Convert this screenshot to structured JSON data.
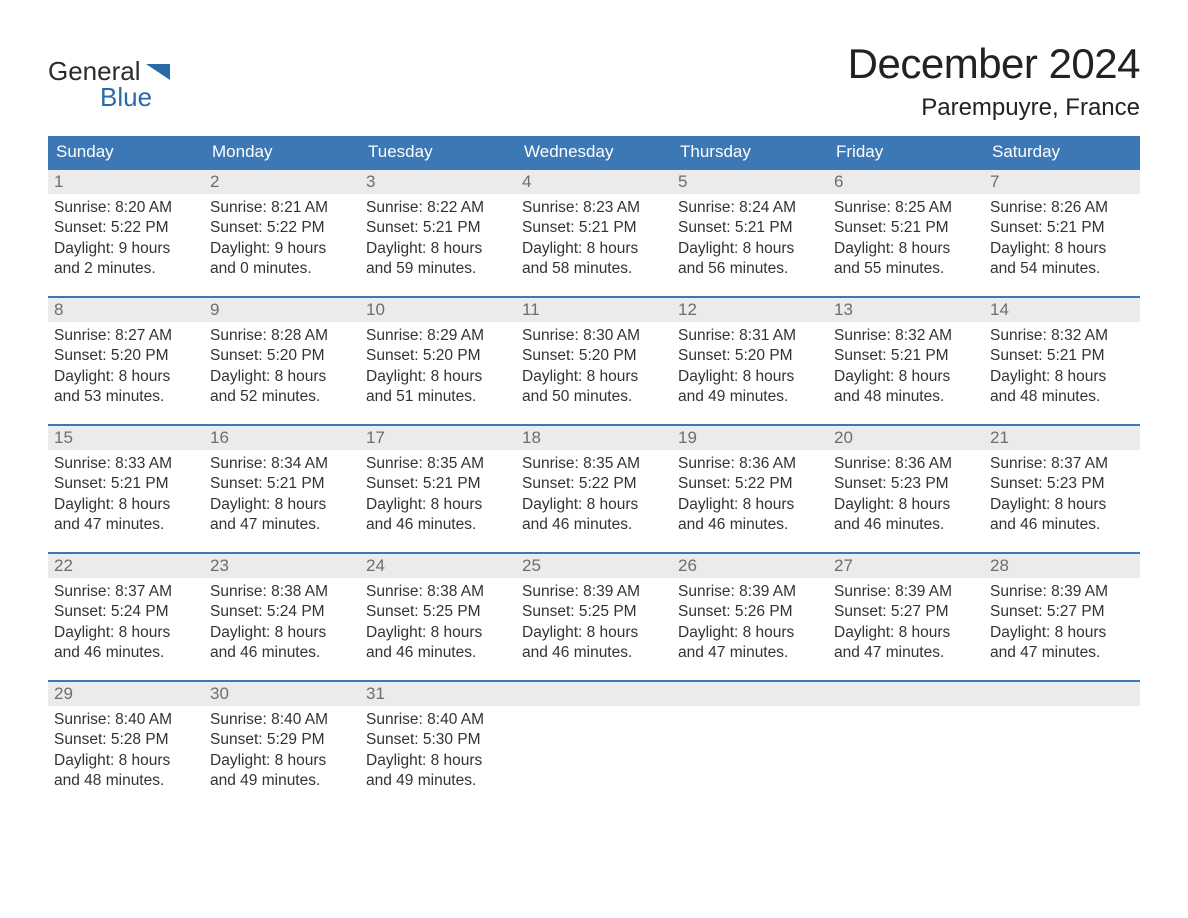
{
  "logo": {
    "word1": "General",
    "word2": "Blue",
    "text_color": "#2b6aa8",
    "accent_color": "#2b6aa8"
  },
  "header": {
    "month_title": "December 2024",
    "location": "Parempuyre, France"
  },
  "colors": {
    "header_bg": "#3b78b5",
    "header_text": "#ffffff",
    "week_rule": "#3b78b5",
    "daynum_bg": "#ebebeb",
    "daynum_text": "#6e6e6e",
    "body_text": "#333333",
    "page_bg": "#ffffff"
  },
  "weekdays": [
    "Sunday",
    "Monday",
    "Tuesday",
    "Wednesday",
    "Thursday",
    "Friday",
    "Saturday"
  ],
  "weeks": [
    [
      {
        "day": "1",
        "sunrise": "Sunrise: 8:20 AM",
        "sunset": "Sunset: 5:22 PM",
        "dl1": "Daylight: 9 hours",
        "dl2": "and 2 minutes."
      },
      {
        "day": "2",
        "sunrise": "Sunrise: 8:21 AM",
        "sunset": "Sunset: 5:22 PM",
        "dl1": "Daylight: 9 hours",
        "dl2": "and 0 minutes."
      },
      {
        "day": "3",
        "sunrise": "Sunrise: 8:22 AM",
        "sunset": "Sunset: 5:21 PM",
        "dl1": "Daylight: 8 hours",
        "dl2": "and 59 minutes."
      },
      {
        "day": "4",
        "sunrise": "Sunrise: 8:23 AM",
        "sunset": "Sunset: 5:21 PM",
        "dl1": "Daylight: 8 hours",
        "dl2": "and 58 minutes."
      },
      {
        "day": "5",
        "sunrise": "Sunrise: 8:24 AM",
        "sunset": "Sunset: 5:21 PM",
        "dl1": "Daylight: 8 hours",
        "dl2": "and 56 minutes."
      },
      {
        "day": "6",
        "sunrise": "Sunrise: 8:25 AM",
        "sunset": "Sunset: 5:21 PM",
        "dl1": "Daylight: 8 hours",
        "dl2": "and 55 minutes."
      },
      {
        "day": "7",
        "sunrise": "Sunrise: 8:26 AM",
        "sunset": "Sunset: 5:21 PM",
        "dl1": "Daylight: 8 hours",
        "dl2": "and 54 minutes."
      }
    ],
    [
      {
        "day": "8",
        "sunrise": "Sunrise: 8:27 AM",
        "sunset": "Sunset: 5:20 PM",
        "dl1": "Daylight: 8 hours",
        "dl2": "and 53 minutes."
      },
      {
        "day": "9",
        "sunrise": "Sunrise: 8:28 AM",
        "sunset": "Sunset: 5:20 PM",
        "dl1": "Daylight: 8 hours",
        "dl2": "and 52 minutes."
      },
      {
        "day": "10",
        "sunrise": "Sunrise: 8:29 AM",
        "sunset": "Sunset: 5:20 PM",
        "dl1": "Daylight: 8 hours",
        "dl2": "and 51 minutes."
      },
      {
        "day": "11",
        "sunrise": "Sunrise: 8:30 AM",
        "sunset": "Sunset: 5:20 PM",
        "dl1": "Daylight: 8 hours",
        "dl2": "and 50 minutes."
      },
      {
        "day": "12",
        "sunrise": "Sunrise: 8:31 AM",
        "sunset": "Sunset: 5:20 PM",
        "dl1": "Daylight: 8 hours",
        "dl2": "and 49 minutes."
      },
      {
        "day": "13",
        "sunrise": "Sunrise: 8:32 AM",
        "sunset": "Sunset: 5:21 PM",
        "dl1": "Daylight: 8 hours",
        "dl2": "and 48 minutes."
      },
      {
        "day": "14",
        "sunrise": "Sunrise: 8:32 AM",
        "sunset": "Sunset: 5:21 PM",
        "dl1": "Daylight: 8 hours",
        "dl2": "and 48 minutes."
      }
    ],
    [
      {
        "day": "15",
        "sunrise": "Sunrise: 8:33 AM",
        "sunset": "Sunset: 5:21 PM",
        "dl1": "Daylight: 8 hours",
        "dl2": "and 47 minutes."
      },
      {
        "day": "16",
        "sunrise": "Sunrise: 8:34 AM",
        "sunset": "Sunset: 5:21 PM",
        "dl1": "Daylight: 8 hours",
        "dl2": "and 47 minutes."
      },
      {
        "day": "17",
        "sunrise": "Sunrise: 8:35 AM",
        "sunset": "Sunset: 5:21 PM",
        "dl1": "Daylight: 8 hours",
        "dl2": "and 46 minutes."
      },
      {
        "day": "18",
        "sunrise": "Sunrise: 8:35 AM",
        "sunset": "Sunset: 5:22 PM",
        "dl1": "Daylight: 8 hours",
        "dl2": "and 46 minutes."
      },
      {
        "day": "19",
        "sunrise": "Sunrise: 8:36 AM",
        "sunset": "Sunset: 5:22 PM",
        "dl1": "Daylight: 8 hours",
        "dl2": "and 46 minutes."
      },
      {
        "day": "20",
        "sunrise": "Sunrise: 8:36 AM",
        "sunset": "Sunset: 5:23 PM",
        "dl1": "Daylight: 8 hours",
        "dl2": "and 46 minutes."
      },
      {
        "day": "21",
        "sunrise": "Sunrise: 8:37 AM",
        "sunset": "Sunset: 5:23 PM",
        "dl1": "Daylight: 8 hours",
        "dl2": "and 46 minutes."
      }
    ],
    [
      {
        "day": "22",
        "sunrise": "Sunrise: 8:37 AM",
        "sunset": "Sunset: 5:24 PM",
        "dl1": "Daylight: 8 hours",
        "dl2": "and 46 minutes."
      },
      {
        "day": "23",
        "sunrise": "Sunrise: 8:38 AM",
        "sunset": "Sunset: 5:24 PM",
        "dl1": "Daylight: 8 hours",
        "dl2": "and 46 minutes."
      },
      {
        "day": "24",
        "sunrise": "Sunrise: 8:38 AM",
        "sunset": "Sunset: 5:25 PM",
        "dl1": "Daylight: 8 hours",
        "dl2": "and 46 minutes."
      },
      {
        "day": "25",
        "sunrise": "Sunrise: 8:39 AM",
        "sunset": "Sunset: 5:25 PM",
        "dl1": "Daylight: 8 hours",
        "dl2": "and 46 minutes."
      },
      {
        "day": "26",
        "sunrise": "Sunrise: 8:39 AM",
        "sunset": "Sunset: 5:26 PM",
        "dl1": "Daylight: 8 hours",
        "dl2": "and 47 minutes."
      },
      {
        "day": "27",
        "sunrise": "Sunrise: 8:39 AM",
        "sunset": "Sunset: 5:27 PM",
        "dl1": "Daylight: 8 hours",
        "dl2": "and 47 minutes."
      },
      {
        "day": "28",
        "sunrise": "Sunrise: 8:39 AM",
        "sunset": "Sunset: 5:27 PM",
        "dl1": "Daylight: 8 hours",
        "dl2": "and 47 minutes."
      }
    ],
    [
      {
        "day": "29",
        "sunrise": "Sunrise: 8:40 AM",
        "sunset": "Sunset: 5:28 PM",
        "dl1": "Daylight: 8 hours",
        "dl2": "and 48 minutes."
      },
      {
        "day": "30",
        "sunrise": "Sunrise: 8:40 AM",
        "sunset": "Sunset: 5:29 PM",
        "dl1": "Daylight: 8 hours",
        "dl2": "and 49 minutes."
      },
      {
        "day": "31",
        "sunrise": "Sunrise: 8:40 AM",
        "sunset": "Sunset: 5:30 PM",
        "dl1": "Daylight: 8 hours",
        "dl2": "and 49 minutes."
      },
      {
        "empty": true
      },
      {
        "empty": true
      },
      {
        "empty": true
      },
      {
        "empty": true
      }
    ]
  ]
}
